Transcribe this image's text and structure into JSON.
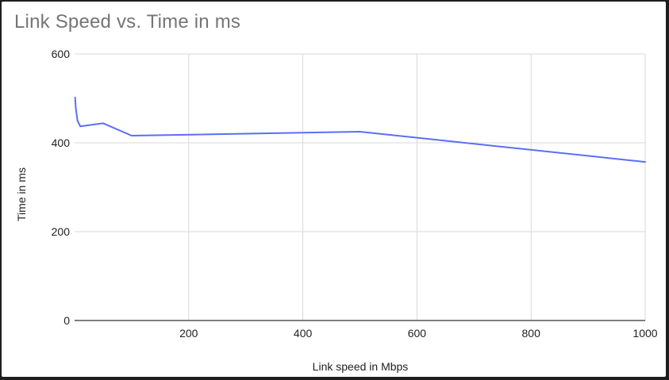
{
  "chart_data": {
    "type": "line",
    "title": "Link Speed vs. Time in ms",
    "xlabel": "Link speed in Mbps",
    "ylabel": "Time in ms",
    "xlim": [
      0,
      1000
    ],
    "ylim": [
      0,
      600
    ],
    "x_ticks": [
      200,
      400,
      600,
      800,
      1000
    ],
    "y_ticks": [
      0,
      200,
      400,
      600
    ],
    "grid": true,
    "legend": "none",
    "series": [
      {
        "color": "#5b6ef5",
        "x": [
          1,
          2,
          5,
          10,
          50,
          100,
          500,
          1000
        ],
        "y": [
          502,
          480,
          450,
          437,
          444,
          416,
          425,
          357
        ]
      }
    ]
  }
}
